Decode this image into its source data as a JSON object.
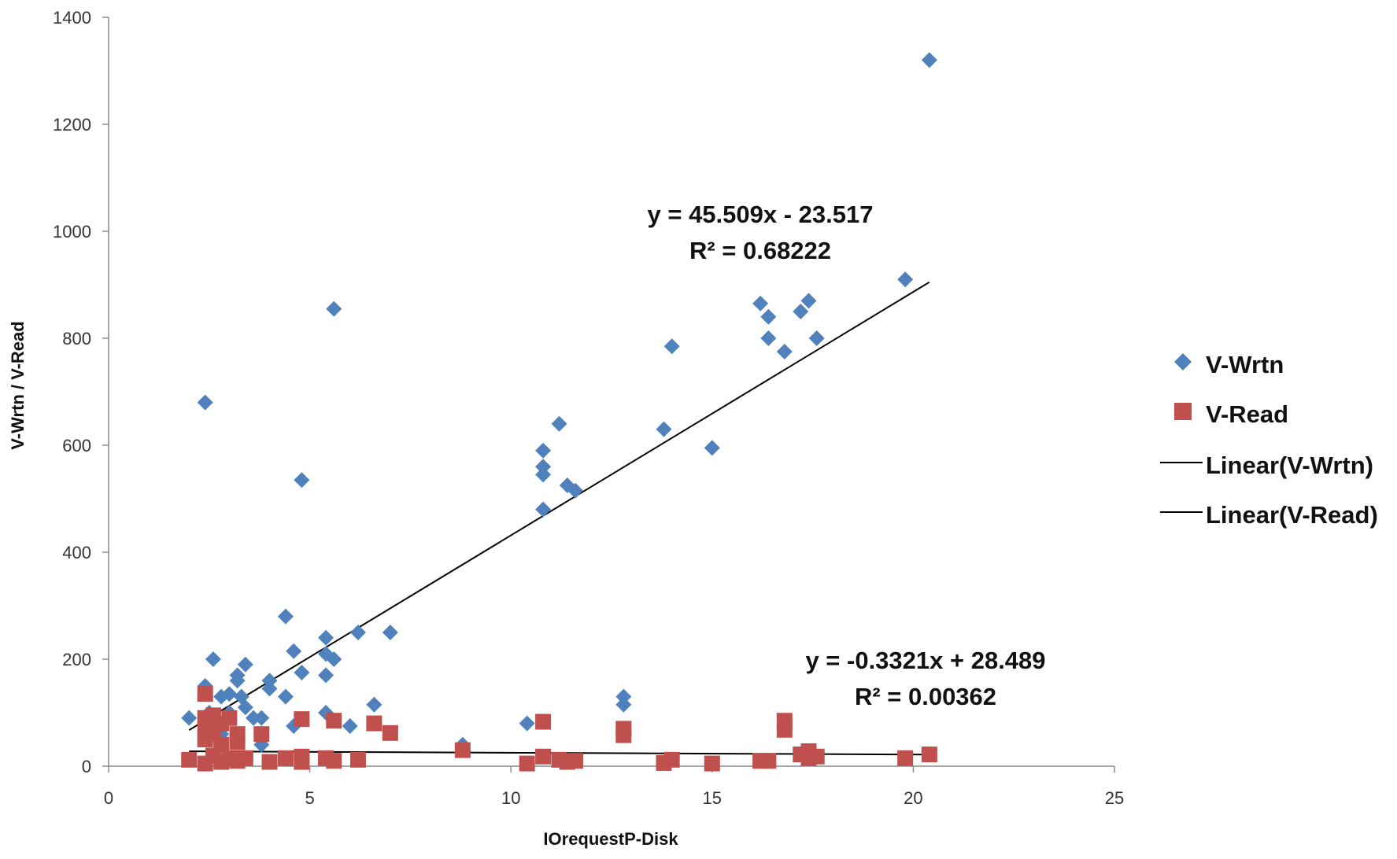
{
  "chart_data": {
    "type": "scatter",
    "xlabel": "IOrequestP-Disk",
    "ylabel": "V-Wrtn / V-Read",
    "xlim": [
      0,
      25
    ],
    "ylim": [
      0,
      1400
    ],
    "xticks": [
      0,
      5,
      10,
      15,
      20,
      25
    ],
    "yticks": [
      0,
      200,
      400,
      600,
      800,
      1000,
      1200,
      1400
    ],
    "grid": false,
    "legend_position": "right",
    "series": [
      {
        "name": "V-Wrtn",
        "marker": "diamond",
        "color": "#4F81BD",
        "points": [
          [
            2.0,
            90
          ],
          [
            2.4,
            680
          ],
          [
            2.4,
            150
          ],
          [
            2.5,
            100
          ],
          [
            2.6,
            200
          ],
          [
            2.6,
            80
          ],
          [
            2.8,
            130
          ],
          [
            2.8,
            60
          ],
          [
            3.0,
            135
          ],
          [
            3.0,
            100
          ],
          [
            3.2,
            170
          ],
          [
            3.2,
            160
          ],
          [
            3.3,
            130
          ],
          [
            3.4,
            190
          ],
          [
            3.4,
            110
          ],
          [
            3.6,
            90
          ],
          [
            3.8,
            90
          ],
          [
            3.8,
            40
          ],
          [
            4.0,
            160
          ],
          [
            4.0,
            145
          ],
          [
            4.4,
            280
          ],
          [
            4.4,
            130
          ],
          [
            4.6,
            215
          ],
          [
            4.6,
            75
          ],
          [
            4.8,
            535
          ],
          [
            4.8,
            175
          ],
          [
            5.4,
            240
          ],
          [
            5.4,
            210
          ],
          [
            5.4,
            170
          ],
          [
            5.4,
            100
          ],
          [
            5.6,
            855
          ],
          [
            5.6,
            200
          ],
          [
            6.0,
            75
          ],
          [
            6.2,
            250
          ],
          [
            6.6,
            115
          ],
          [
            7.0,
            250
          ],
          [
            8.8,
            40
          ],
          [
            10.4,
            80
          ],
          [
            10.8,
            590
          ],
          [
            10.8,
            560
          ],
          [
            10.8,
            545
          ],
          [
            10.8,
            480
          ],
          [
            11.2,
            640
          ],
          [
            11.4,
            525
          ],
          [
            11.6,
            515
          ],
          [
            12.8,
            130
          ],
          [
            12.8,
            115
          ],
          [
            13.8,
            630
          ],
          [
            14.0,
            785
          ],
          [
            15.0,
            595
          ],
          [
            16.2,
            865
          ],
          [
            16.4,
            840
          ],
          [
            16.4,
            800
          ],
          [
            16.8,
            775
          ],
          [
            17.2,
            850
          ],
          [
            17.4,
            870
          ],
          [
            17.6,
            800
          ],
          [
            19.8,
            910
          ],
          [
            20.4,
            1320
          ]
        ],
        "trendline": {
          "name": "Linear(V-Wrtn)",
          "slope": 45.509,
          "intercept": -23.517,
          "x_range": [
            2.0,
            20.4
          ],
          "equation": "y = 45.509x - 23.517",
          "r2": "R² = 0.68222"
        }
      },
      {
        "name": "V-Read",
        "marker": "square",
        "color": "#C0504D",
        "points": [
          [
            2.0,
            12
          ],
          [
            2.4,
            135
          ],
          [
            2.4,
            90
          ],
          [
            2.4,
            70
          ],
          [
            2.4,
            50
          ],
          [
            2.4,
            5
          ],
          [
            2.6,
            95
          ],
          [
            2.6,
            60
          ],
          [
            2.6,
            20
          ],
          [
            2.8,
            80
          ],
          [
            2.8,
            40
          ],
          [
            2.8,
            8
          ],
          [
            3.0,
            90
          ],
          [
            3.0,
            15
          ],
          [
            3.2,
            60
          ],
          [
            3.2,
            45
          ],
          [
            3.2,
            10
          ],
          [
            3.4,
            15
          ],
          [
            3.8,
            60
          ],
          [
            4.0,
            8
          ],
          [
            4.4,
            15
          ],
          [
            4.8,
            88
          ],
          [
            4.8,
            18
          ],
          [
            4.8,
            8
          ],
          [
            5.4,
            15
          ],
          [
            5.6,
            85
          ],
          [
            5.6,
            10
          ],
          [
            6.2,
            12
          ],
          [
            6.6,
            80
          ],
          [
            7.0,
            62
          ],
          [
            8.8,
            30
          ],
          [
            10.4,
            5
          ],
          [
            10.8,
            83
          ],
          [
            10.8,
            18
          ],
          [
            11.2,
            12
          ],
          [
            11.4,
            8
          ],
          [
            11.6,
            10
          ],
          [
            12.8,
            70
          ],
          [
            12.8,
            58
          ],
          [
            13.8,
            6
          ],
          [
            14.0,
            12
          ],
          [
            15.0,
            5
          ],
          [
            16.2,
            10
          ],
          [
            16.4,
            10
          ],
          [
            16.8,
            85
          ],
          [
            16.8,
            68
          ],
          [
            17.2,
            22
          ],
          [
            17.4,
            28
          ],
          [
            17.4,
            15
          ],
          [
            17.6,
            18
          ],
          [
            19.8,
            15
          ],
          [
            20.4,
            22
          ]
        ],
        "trendline": {
          "name": "Linear(V-Read)",
          "slope": -0.3321,
          "intercept": 28.489,
          "x_range": [
            2.0,
            20.4
          ],
          "equation": "y = -0.3321x + 28.489",
          "r2": "R² = 0.00362"
        }
      }
    ]
  }
}
